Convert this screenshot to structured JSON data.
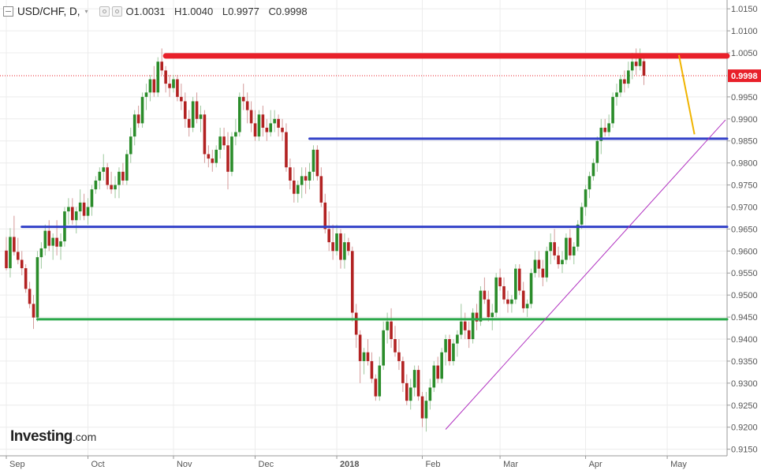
{
  "header": {
    "symbol": "USD/CHF, D,",
    "ohlc": {
      "o_label": "O",
      "o_value": "1.0031",
      "h_label": "H",
      "h_value": "1.0040",
      "l_label": "L",
      "l_value": "0.9977",
      "c_label": "C",
      "c_value": "0.9998"
    }
  },
  "logo": {
    "main": "Investing",
    "suffix": ".com"
  },
  "colors": {
    "up": "#2a8c2a",
    "down": "#b22222",
    "resistance": "#e8202a",
    "support_blue": "#3240c8",
    "support_green": "#2aa84a",
    "trendline": "#b030c0",
    "arrow": "#f0b400",
    "price_label_bg": "#e8202a",
    "axis_text": "#555555"
  },
  "chart_data": {
    "type": "candlestick",
    "title": "USD/CHF, D",
    "current_price": 0.9998,
    "current_price_label": "0.9998",
    "ylim": [
      0.9135,
      1.017
    ],
    "y_ticks": [
      "1.0150",
      "1.0100",
      "1.0050",
      "0.9998",
      "0.9950",
      "0.9900",
      "0.9850",
      "0.9800",
      "0.9750",
      "0.9700",
      "0.9650",
      "0.9600",
      "0.9550",
      "0.9500",
      "0.9450",
      "0.9400",
      "0.9350",
      "0.9300",
      "0.9250",
      "0.9200",
      "0.9150"
    ],
    "x_labels": [
      {
        "label": "Sep",
        "bar": 0
      },
      {
        "label": "Oct",
        "bar": 21
      },
      {
        "label": "Nov",
        "bar": 43
      },
      {
        "label": "Dec",
        "bar": 64
      },
      {
        "label": "2018",
        "bar": 85
      },
      {
        "label": "Feb",
        "bar": 107
      },
      {
        "label": "Mar",
        "bar": 127
      },
      {
        "label": "Apr",
        "bar": 149
      },
      {
        "label": "May",
        "bar": 170
      }
    ],
    "candles": [
      [
        0.9601,
        0.9632,
        0.9556,
        0.9561
      ],
      [
        0.9561,
        0.9652,
        0.954,
        0.9632
      ],
      [
        0.9632,
        0.968,
        0.959,
        0.9598
      ],
      [
        0.9598,
        0.963,
        0.957,
        0.958
      ],
      [
        0.958,
        0.96,
        0.9545,
        0.9561
      ],
      [
        0.9561,
        0.957,
        0.9505,
        0.9514
      ],
      [
        0.9514,
        0.953,
        0.947,
        0.948
      ],
      [
        0.948,
        0.95,
        0.9423,
        0.9449
      ],
      [
        0.9449,
        0.96,
        0.944,
        0.9586
      ],
      [
        0.9586,
        0.962,
        0.956,
        0.9606
      ],
      [
        0.9606,
        0.966,
        0.959,
        0.9646
      ],
      [
        0.9646,
        0.967,
        0.96,
        0.9612
      ],
      [
        0.9612,
        0.964,
        0.958,
        0.963
      ],
      [
        0.963,
        0.967,
        0.959,
        0.961
      ],
      [
        0.961,
        0.964,
        0.958,
        0.9622
      ],
      [
        0.9622,
        0.97,
        0.961,
        0.969
      ],
      [
        0.969,
        0.972,
        0.966,
        0.97
      ],
      [
        0.97,
        0.972,
        0.966,
        0.967
      ],
      [
        0.967,
        0.97,
        0.964,
        0.969
      ],
      [
        0.969,
        0.974,
        0.967,
        0.971
      ],
      [
        0.971,
        0.973,
        0.967,
        0.968
      ],
      [
        0.968,
        0.972,
        0.966,
        0.97
      ],
      [
        0.97,
        0.975,
        0.968,
        0.974
      ],
      [
        0.974,
        0.977,
        0.973,
        0.976
      ],
      [
        0.976,
        0.979,
        0.974,
        0.978
      ],
      [
        0.978,
        0.982,
        0.976,
        0.979
      ],
      [
        0.979,
        0.98,
        0.974,
        0.975
      ],
      [
        0.975,
        0.978,
        0.973,
        0.974
      ],
      [
        0.974,
        0.977,
        0.972,
        0.975
      ],
      [
        0.975,
        0.979,
        0.972,
        0.978
      ],
      [
        0.978,
        0.98,
        0.975,
        0.976
      ],
      [
        0.976,
        0.983,
        0.975,
        0.982
      ],
      [
        0.982,
        0.988,
        0.98,
        0.986
      ],
      [
        0.986,
        0.992,
        0.984,
        0.991
      ],
      [
        0.991,
        0.993,
        0.988,
        0.989
      ],
      [
        0.989,
        0.996,
        0.988,
        0.995
      ],
      [
        0.995,
        0.998,
        0.992,
        0.996
      ],
      [
        0.996,
        1.0,
        0.994,
        0.999
      ],
      [
        0.999,
        1.002,
        0.995,
        0.996
      ],
      [
        0.996,
        1.004,
        0.995,
        1.003
      ],
      [
        1.003,
        1.006,
        1.0,
        1.001
      ],
      [
        1.001,
        1.002,
        0.996,
        0.998
      ],
      [
        0.998,
        1.0,
        0.995,
        0.997
      ],
      [
        0.997,
        1.0,
        0.996,
        0.999
      ],
      [
        0.999,
        1.0,
        0.994,
        0.995
      ],
      [
        0.995,
        0.998,
        0.992,
        0.994
      ],
      [
        0.994,
        0.996,
        0.988,
        0.99
      ],
      [
        0.99,
        0.992,
        0.986,
        0.988
      ],
      [
        0.988,
        0.995,
        0.987,
        0.994
      ],
      [
        0.994,
        0.996,
        0.989,
        0.99
      ],
      [
        0.99,
        0.993,
        0.987,
        0.991
      ],
      [
        0.991,
        0.992,
        0.98,
        0.982
      ],
      [
        0.982,
        0.984,
        0.979,
        0.981
      ],
      [
        0.981,
        0.983,
        0.978,
        0.98
      ],
      [
        0.98,
        0.984,
        0.979,
        0.983
      ],
      [
        0.983,
        0.988,
        0.981,
        0.986
      ],
      [
        0.986,
        0.988,
        0.983,
        0.984
      ],
      [
        0.984,
        0.987,
        0.974,
        0.978
      ],
      [
        0.978,
        0.987,
        0.977,
        0.986
      ],
      [
        0.986,
        0.99,
        0.984,
        0.987
      ],
      [
        0.987,
        0.996,
        0.986,
        0.995
      ],
      [
        0.995,
        0.998,
        0.992,
        0.994
      ],
      [
        0.994,
        0.996,
        0.989,
        0.992
      ],
      [
        0.992,
        0.994,
        0.987,
        0.989
      ],
      [
        0.989,
        0.992,
        0.985,
        0.986
      ],
      [
        0.986,
        0.992,
        0.985,
        0.991
      ],
      [
        0.991,
        0.993,
        0.986,
        0.988
      ],
      [
        0.988,
        0.99,
        0.985,
        0.987
      ],
      [
        0.987,
        0.992,
        0.986,
        0.989
      ],
      [
        0.989,
        0.992,
        0.987,
        0.99
      ],
      [
        0.99,
        0.991,
        0.986,
        0.988
      ],
      [
        0.988,
        0.99,
        0.985,
        0.987
      ],
      [
        0.987,
        0.989,
        0.978,
        0.979
      ],
      [
        0.979,
        0.981,
        0.974,
        0.976
      ],
      [
        0.976,
        0.979,
        0.971,
        0.973
      ],
      [
        0.973,
        0.976,
        0.971,
        0.975
      ],
      [
        0.975,
        0.979,
        0.972,
        0.977
      ],
      [
        0.977,
        0.979,
        0.973,
        0.976
      ],
      [
        0.976,
        0.98,
        0.974,
        0.978
      ],
      [
        0.978,
        0.984,
        0.976,
        0.983
      ],
      [
        0.983,
        0.984,
        0.976,
        0.977
      ],
      [
        0.977,
        0.979,
        0.97,
        0.971
      ],
      [
        0.971,
        0.973,
        0.964,
        0.965
      ],
      [
        0.965,
        0.969,
        0.96,
        0.962
      ],
      [
        0.962,
        0.966,
        0.958,
        0.96
      ],
      [
        0.96,
        0.966,
        0.959,
        0.964
      ],
      [
        0.964,
        0.965,
        0.956,
        0.958
      ],
      [
        0.958,
        0.964,
        0.956,
        0.962
      ],
      [
        0.962,
        0.963,
        0.959,
        0.96
      ],
      [
        0.96,
        0.961,
        0.944,
        0.946
      ],
      [
        0.946,
        0.948,
        0.938,
        0.941
      ],
      [
        0.941,
        0.942,
        0.93,
        0.935
      ],
      [
        0.935,
        0.938,
        0.932,
        0.937
      ],
      [
        0.937,
        0.94,
        0.934,
        0.935
      ],
      [
        0.935,
        0.937,
        0.93,
        0.931
      ],
      [
        0.931,
        0.932,
        0.926,
        0.927
      ],
      [
        0.927,
        0.936,
        0.926,
        0.934
      ],
      [
        0.934,
        0.944,
        0.933,
        0.942
      ],
      [
        0.942,
        0.946,
        0.939,
        0.944
      ],
      [
        0.944,
        0.947,
        0.938,
        0.94
      ],
      [
        0.94,
        0.943,
        0.936,
        0.937
      ],
      [
        0.937,
        0.94,
        0.933,
        0.935
      ],
      [
        0.935,
        0.936,
        0.928,
        0.93
      ],
      [
        0.93,
        0.932,
        0.925,
        0.926
      ],
      [
        0.926,
        0.931,
        0.924,
        0.929
      ],
      [
        0.929,
        0.934,
        0.927,
        0.933
      ],
      [
        0.933,
        0.934,
        0.926,
        0.927
      ],
      [
        0.927,
        0.928,
        0.92,
        0.922
      ],
      [
        0.922,
        0.928,
        0.919,
        0.926
      ],
      [
        0.926,
        0.931,
        0.924,
        0.929
      ],
      [
        0.929,
        0.935,
        0.928,
        0.934
      ],
      [
        0.934,
        0.936,
        0.93,
        0.931
      ],
      [
        0.931,
        0.938,
        0.93,
        0.937
      ],
      [
        0.937,
        0.941,
        0.934,
        0.94
      ],
      [
        0.94,
        0.941,
        0.934,
        0.935
      ],
      [
        0.935,
        0.94,
        0.934,
        0.939
      ],
      [
        0.939,
        0.942,
        0.936,
        0.941
      ],
      [
        0.941,
        0.948,
        0.94,
        0.944
      ],
      [
        0.944,
        0.946,
        0.94,
        0.942
      ],
      [
        0.942,
        0.944,
        0.938,
        0.94
      ],
      [
        0.94,
        0.947,
        0.939,
        0.946
      ],
      [
        0.946,
        0.948,
        0.942,
        0.944
      ],
      [
        0.944,
        0.952,
        0.943,
        0.951
      ],
      [
        0.951,
        0.954,
        0.948,
        0.949
      ],
      [
        0.949,
        0.951,
        0.944,
        0.945
      ],
      [
        0.945,
        0.948,
        0.942,
        0.946
      ],
      [
        0.946,
        0.955,
        0.945,
        0.954
      ],
      [
        0.954,
        0.956,
        0.951,
        0.952
      ],
      [
        0.952,
        0.954,
        0.948,
        0.949
      ],
      [
        0.949,
        0.951,
        0.946,
        0.948
      ],
      [
        0.948,
        0.95,
        0.946,
        0.949
      ],
      [
        0.949,
        0.957,
        0.948,
        0.956
      ],
      [
        0.956,
        0.957,
        0.95,
        0.951
      ],
      [
        0.951,
        0.953,
        0.946,
        0.947
      ],
      [
        0.947,
        0.949,
        0.945,
        0.948
      ],
      [
        0.948,
        0.956,
        0.947,
        0.955
      ],
      [
        0.955,
        0.96,
        0.954,
        0.958
      ],
      [
        0.958,
        0.96,
        0.954,
        0.956
      ],
      [
        0.956,
        0.958,
        0.952,
        0.954
      ],
      [
        0.954,
        0.961,
        0.953,
        0.96
      ],
      [
        0.96,
        0.964,
        0.957,
        0.962
      ],
      [
        0.962,
        0.965,
        0.958,
        0.959
      ],
      [
        0.959,
        0.961,
        0.956,
        0.957
      ],
      [
        0.957,
        0.96,
        0.955,
        0.958
      ],
      [
        0.958,
        0.964,
        0.957,
        0.963
      ],
      [
        0.963,
        0.965,
        0.958,
        0.959
      ],
      [
        0.959,
        0.962,
        0.957,
        0.961
      ],
      [
        0.961,
        0.967,
        0.96,
        0.966
      ],
      [
        0.966,
        0.971,
        0.965,
        0.97
      ],
      [
        0.97,
        0.975,
        0.968,
        0.974
      ],
      [
        0.974,
        0.978,
        0.972,
        0.977
      ],
      [
        0.977,
        0.981,
        0.976,
        0.98
      ],
      [
        0.98,
        0.986,
        0.978,
        0.985
      ],
      [
        0.985,
        0.99,
        0.982,
        0.988
      ],
      [
        0.988,
        0.99,
        0.986,
        0.987
      ],
      [
        0.987,
        0.991,
        0.986,
        0.989
      ],
      [
        0.989,
        0.996,
        0.988,
        0.995
      ],
      [
        0.995,
        0.998,
        0.993,
        0.996
      ],
      [
        0.996,
        1.0,
        0.995,
        0.999
      ],
      [
        0.999,
        1.001,
        0.996,
        0.998
      ],
      [
        0.998,
        1.003,
        0.997,
        1.001
      ],
      [
        1.001,
        1.005,
        0.999,
        1.003
      ],
      [
        1.003,
        1.006,
        1.0,
        1.002
      ],
      [
        1.002,
        1.006,
        1.001,
        1.004
      ],
      [
        1.0031,
        1.004,
        0.9977,
        0.9998
      ]
    ],
    "horizontal_lines": [
      {
        "name": "resistance-line",
        "price": 1.0043,
        "color": "#e8202a",
        "width": 7,
        "from_bar": 41
      },
      {
        "name": "support-line-upper",
        "price": 0.9855,
        "color": "#3240c8",
        "width": 3,
        "from_bar": 78
      },
      {
        "name": "support-line-middle",
        "price": 0.9655,
        "color": "#3240c8",
        "width": 3,
        "from_bar": 4
      },
      {
        "name": "support-line-lower",
        "price": 0.9445,
        "color": "#2aa84a",
        "width": 3,
        "from_bar": 8
      }
    ],
    "trendline": {
      "from_bar": 113,
      "from_price": 0.9195,
      "to_bar": 176,
      "to_price": 0.981,
      "color": "#b030c0"
    },
    "arrow": {
      "from_bar": 173,
      "from_price": 1.0045,
      "to_bar": 177,
      "to_price": 0.9865,
      "color": "#f0b400"
    }
  }
}
